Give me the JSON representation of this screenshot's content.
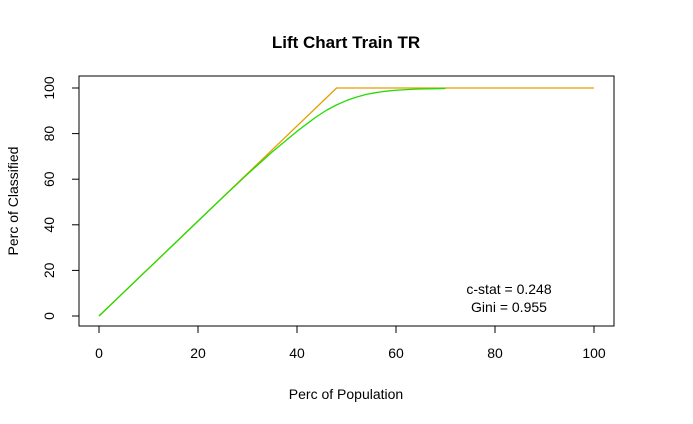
{
  "chart_data": {
    "type": "line",
    "title": "Lift Chart Train TR",
    "xlabel": "Perc of Population",
    "ylabel": "Perc of Classified",
    "xlim": [
      0,
      100
    ],
    "ylim": [
      0,
      100
    ],
    "x_ticks": [
      0,
      20,
      40,
      60,
      80,
      100
    ],
    "y_ticks": [
      0,
      20,
      40,
      60,
      80,
      100
    ],
    "grid": false,
    "series": [
      {
        "color": "#E69F00",
        "x": [
          0,
          48,
          100
        ],
        "y": [
          0,
          100,
          100
        ]
      },
      {
        "color": "#22DD00",
        "x": [
          0,
          5,
          10,
          15,
          20,
          25,
          30,
          35,
          40,
          42,
          44,
          46,
          48,
          50,
          52,
          54,
          56,
          58,
          60,
          62,
          64,
          66,
          68,
          70
        ],
        "y": [
          0,
          10.4,
          20.8,
          31.2,
          41.6,
          52.0,
          62.2,
          72.0,
          81.0,
          84.3,
          87.5,
          90.3,
          92.6,
          94.5,
          96.0,
          97.2,
          98.0,
          98.6,
          99.0,
          99.3,
          99.5,
          99.6,
          99.7,
          99.8
        ]
      }
    ],
    "annotations": [
      "c-stat = 0.248",
      "Gini = 0.955"
    ]
  }
}
